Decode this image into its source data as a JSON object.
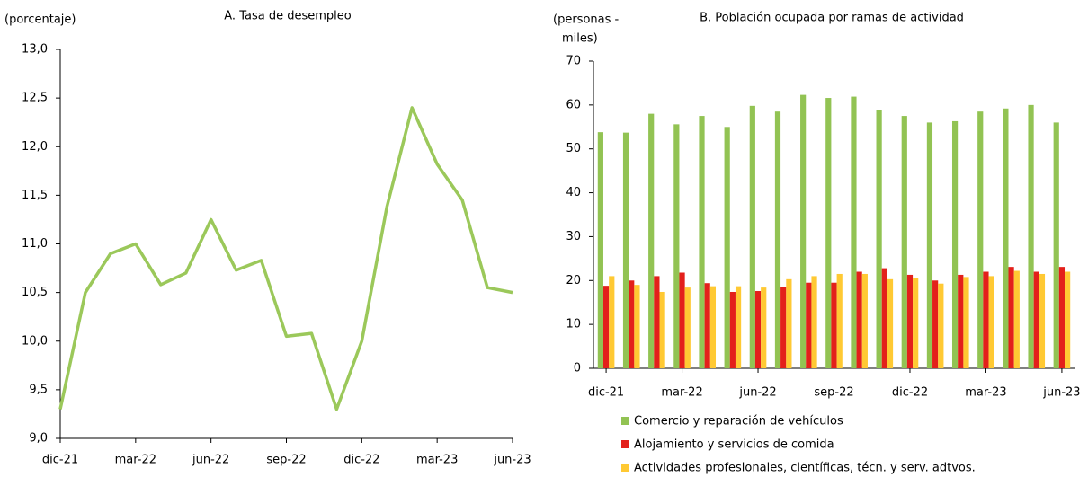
{
  "chart_data": [
    {
      "type": "line",
      "title": "A. Tasa de desempleo",
      "y_label": [
        "(porcentaje)"
      ],
      "categories": [
        "dic-21",
        null,
        null,
        "mar-22",
        null,
        null,
        "jun-22",
        null,
        null,
        "sep-22",
        null,
        null,
        "dic-22",
        null,
        null,
        "mar-23",
        null,
        null,
        "jun-23"
      ],
      "series": [
        {
          "name": null,
          "color": "#9bc85a",
          "values": [
            9.3,
            10.5,
            10.9,
            11.0,
            10.58,
            10.7,
            11.25,
            10.73,
            10.83,
            10.05,
            10.08,
            9.3,
            10.0,
            11.38,
            12.4,
            11.82,
            11.45,
            10.55,
            10.5
          ]
        }
      ],
      "ylim": [
        9,
        13
      ],
      "yticks": [
        {
          "value": 9,
          "label": "9,0"
        },
        {
          "value": 9.5,
          "label": "9,5"
        },
        {
          "value": 10,
          "label": "10,0"
        },
        {
          "value": 10.5,
          "label": "10,5"
        },
        {
          "value": 11,
          "label": "11,0"
        },
        {
          "value": 11.5,
          "label": "11,5"
        },
        {
          "value": 12,
          "label": "12,0"
        },
        {
          "value": 12.5,
          "label": "12,5"
        },
        {
          "value": 13,
          "label": "13,0"
        }
      ],
      "grid": false
    },
    {
      "type": "bar",
      "title": "B. Población ocupada por ramas de actividad",
      "y_label": [
        "(personas -",
        "miles)"
      ],
      "categories": [
        "dic-21",
        null,
        null,
        "mar-22",
        null,
        null,
        "jun-22",
        null,
        null,
        "sep-22",
        null,
        null,
        "dic-22",
        null,
        null,
        "mar-23",
        null,
        null,
        "jun-23"
      ],
      "series": [
        {
          "name": "Comercio y reparación de vehículos",
          "color": "#92c353",
          "values": [
            53.8,
            53.7,
            58,
            55.6,
            57.5,
            55,
            59.8,
            58.5,
            62.3,
            61.6,
            61.9,
            58.8,
            57.5,
            56,
            56.3,
            58.5,
            59.2,
            60,
            56
          ]
        },
        {
          "name": "Alojamiento y servicios de comida",
          "color": "#e3201b",
          "values": [
            18.8,
            20,
            21,
            21.8,
            19.4,
            17.4,
            17.6,
            18.5,
            19.5,
            19.5,
            22,
            22.8,
            21.3,
            20,
            21.3,
            22,
            23.1,
            22,
            23.1
          ]
        },
        {
          "name": "Actividades profesionales, científicas, técn. y serv. adtvos.",
          "color": "#ffc933",
          "values": [
            21,
            19,
            17.4,
            18.4,
            18.7,
            18.7,
            18.4,
            20.3,
            21,
            21.5,
            21.5,
            20.3,
            20.5,
            19.3,
            20.8,
            21,
            22.2,
            21.5,
            22
          ]
        }
      ],
      "ylim": [
        0,
        70
      ],
      "yticks": [
        0,
        10,
        20,
        30,
        40,
        50,
        60,
        70
      ],
      "grid": false
    }
  ]
}
